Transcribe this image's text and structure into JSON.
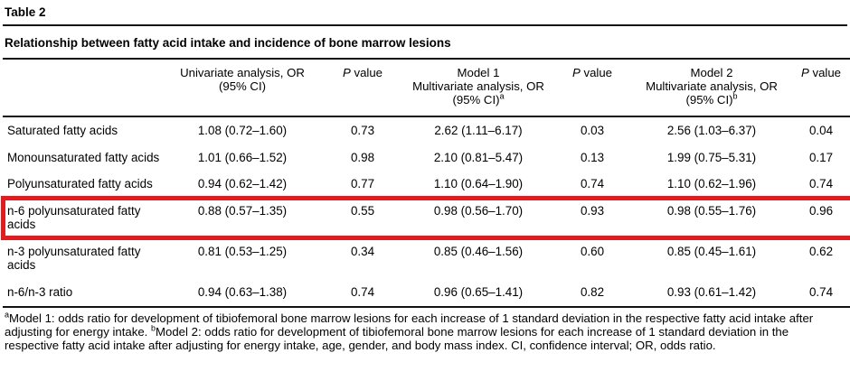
{
  "table_label": "Table 2",
  "title": "Relationship between fatty acid intake and incidence of bone marrow lesions",
  "header": {
    "univariate": {
      "line1": "Univariate analysis, OR",
      "line2": "(95% CI)"
    },
    "p_value": {
      "p": "P",
      "rest": "value"
    },
    "model1": {
      "line1": "Model 1",
      "line2": "Multivariate analysis, OR",
      "line3": "(95% CI)",
      "sup": "a"
    },
    "model2": {
      "line1": "Model 2",
      "line2": "Multivariate analysis, OR",
      "line3": "(95% CI)",
      "sup": "b"
    }
  },
  "rows": [
    {
      "label": "Saturated fatty acids",
      "univariate_or": "1.08 (0.72–1.60)",
      "p1": "0.73",
      "model1_or": "2.62 (1.11–6.17)",
      "p2": "0.03",
      "model2_or": "2.56 (1.03–6.37)",
      "p3": "0.04"
    },
    {
      "label": "Monounsaturated fatty acids",
      "univariate_or": "1.01 (0.66–1.52)",
      "p1": "0.98",
      "model1_or": "2.10 (0.81–5.47)",
      "p2": "0.13",
      "model2_or": "1.99 (0.75–5.31)",
      "p3": "0.17"
    },
    {
      "label": "Polyunsaturated fatty acids",
      "univariate_or": "0.94 (0.62–1.42)",
      "p1": "0.77",
      "model1_or": "1.10 (0.64–1.90)",
      "p2": "0.74",
      "model2_or": "1.10 (0.62–1.96)",
      "p3": "0.74"
    },
    {
      "label": "n-6 polyunsaturated fatty acids",
      "univariate_or": "0.88 (0.57–1.35)",
      "p1": "0.55",
      "model1_or": "0.98 (0.56–1.70)",
      "p2": "0.93",
      "model2_or": "0.98 (0.55–1.76)",
      "p3": "0.96"
    },
    {
      "label": "n-3 polyunsaturated fatty acids",
      "univariate_or": "0.81 (0.53–1.25)",
      "p1": "0.34",
      "model1_or": "0.85 (0.46–1.56)",
      "p2": "0.60",
      "model2_or": "0.85 (0.45–1.61)",
      "p3": "0.62"
    },
    {
      "label": "n-6/n-3 ratio",
      "univariate_or": "0.94 (0.63–1.38)",
      "p1": "0.74",
      "model1_or": "0.96 (0.65–1.41)",
      "p2": "0.82",
      "model2_or": "0.93 (0.61–1.42)",
      "p3": "0.74"
    }
  ],
  "highlight": {
    "row_index": 3,
    "row_label": "n-6 polyunsaturated fatty acids",
    "color": "#e31b1e"
  },
  "footnote": {
    "sup_a": "a",
    "part_a": "Model 1: odds ratio for development of tibiofemoral bone marrow lesions for each increase of 1 standard deviation in the respective fatty acid intake after adjusting for energy intake. ",
    "sup_b": "b",
    "part_b": "Model 2: odds ratio for development of tibiofemoral bone marrow lesions for each increase of 1 standard deviation in the respective fatty acid intake after adjusting for energy intake, age, gender, and body mass index. CI, confidence interval; OR, odds ratio."
  }
}
